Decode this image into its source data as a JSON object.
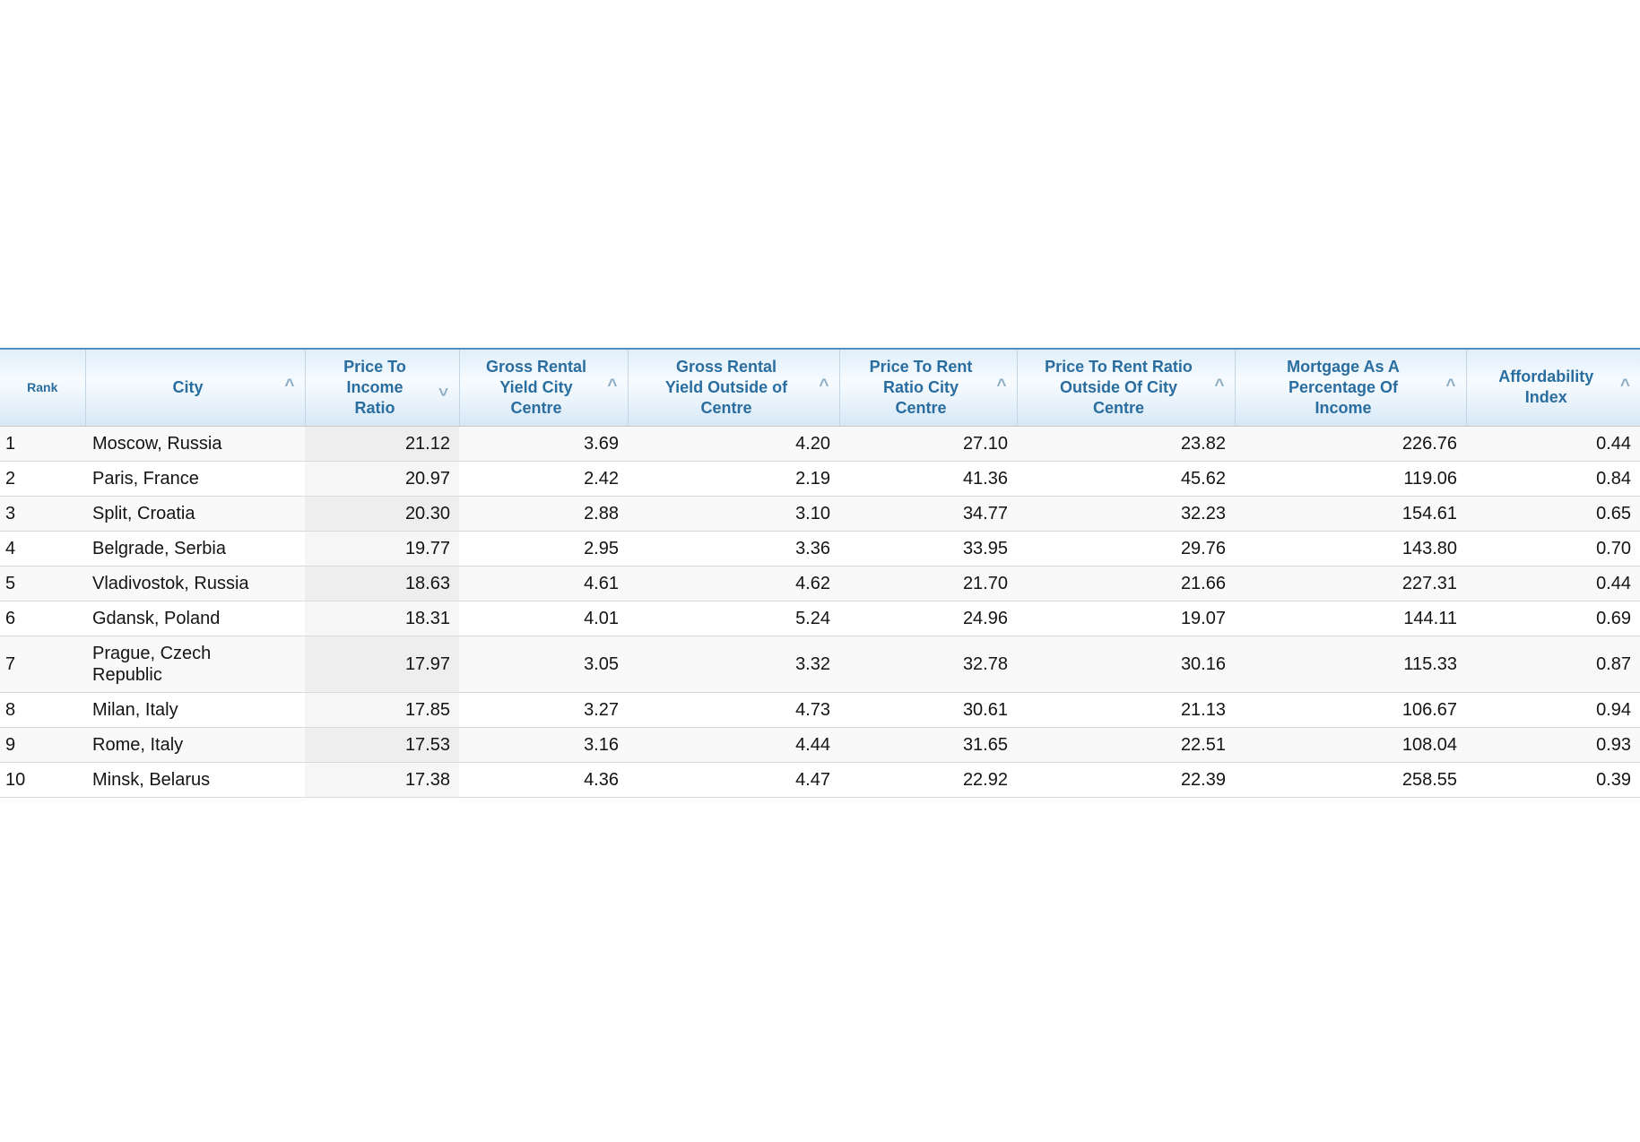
{
  "table": {
    "columns": [
      {
        "id": "rank",
        "name": "rank",
        "label": "Rank",
        "sort": null,
        "sorted": false,
        "align": "left"
      },
      {
        "id": "city",
        "name": "city",
        "label": "City",
        "sort": "asc",
        "sorted": false,
        "align": "left"
      },
      {
        "id": "pti",
        "name": "price-to-income-ratio",
        "label": "Price To\nIncome\nRatio",
        "sort": "desc",
        "sorted": true,
        "align": "right"
      },
      {
        "id": "grycc",
        "name": "gross-rental-yield-city-centre",
        "label": "Gross Rental\nYield City\nCentre",
        "sort": "asc",
        "sorted": false,
        "align": "right"
      },
      {
        "id": "gryoc",
        "name": "gross-rental-yield-outside-of-centre",
        "label": "Gross Rental\nYield Outside of\nCentre",
        "sort": "asc",
        "sorted": false,
        "align": "right"
      },
      {
        "id": "ptrcc",
        "name": "price-to-rent-ratio-city-centre",
        "label": "Price To Rent\nRatio City\nCentre",
        "sort": "asc",
        "sorted": false,
        "align": "right"
      },
      {
        "id": "ptroc",
        "name": "price-to-rent-ratio-outside-of-city-centre",
        "label": "Price To Rent Ratio\nOutside Of City\nCentre",
        "sort": "asc",
        "sorted": false,
        "align": "right"
      },
      {
        "id": "mortgage",
        "name": "mortgage-as-a-percentage-of-income",
        "label": "Mortgage As A\nPercentage Of\nIncome",
        "sort": "asc",
        "sorted": false,
        "align": "right"
      },
      {
        "id": "afford",
        "name": "affordability-index",
        "label": "Affordability\nIndex",
        "sort": "asc",
        "sorted": false,
        "align": "right"
      }
    ],
    "rows": [
      {
        "rank": "1",
        "city": "Moscow, Russia",
        "pti": "21.12",
        "grycc": "3.69",
        "gryoc": "4.20",
        "ptrcc": "27.10",
        "ptroc": "23.82",
        "mortgage": "226.76",
        "afford": "0.44"
      },
      {
        "rank": "2",
        "city": "Paris, France",
        "pti": "20.97",
        "grycc": "2.42",
        "gryoc": "2.19",
        "ptrcc": "41.36",
        "ptroc": "45.62",
        "mortgage": "119.06",
        "afford": "0.84"
      },
      {
        "rank": "3",
        "city": "Split, Croatia",
        "pti": "20.30",
        "grycc": "2.88",
        "gryoc": "3.10",
        "ptrcc": "34.77",
        "ptroc": "32.23",
        "mortgage": "154.61",
        "afford": "0.65"
      },
      {
        "rank": "4",
        "city": "Belgrade, Serbia",
        "pti": "19.77",
        "grycc": "2.95",
        "gryoc": "3.36",
        "ptrcc": "33.95",
        "ptroc": "29.76",
        "mortgage": "143.80",
        "afford": "0.70"
      },
      {
        "rank": "5",
        "city": "Vladivostok, Russia",
        "pti": "18.63",
        "grycc": "4.61",
        "gryoc": "4.62",
        "ptrcc": "21.70",
        "ptroc": "21.66",
        "mortgage": "227.31",
        "afford": "0.44"
      },
      {
        "rank": "6",
        "city": "Gdansk, Poland",
        "pti": "18.31",
        "grycc": "4.01",
        "gryoc": "5.24",
        "ptrcc": "24.96",
        "ptroc": "19.07",
        "mortgage": "144.11",
        "afford": "0.69"
      },
      {
        "rank": "7",
        "city": "Prague, Czech Republic",
        "pti": "17.97",
        "grycc": "3.05",
        "gryoc": "3.32",
        "ptrcc": "32.78",
        "ptroc": "30.16",
        "mortgage": "115.33",
        "afford": "0.87"
      },
      {
        "rank": "8",
        "city": "Milan, Italy",
        "pti": "17.85",
        "grycc": "3.27",
        "gryoc": "4.73",
        "ptrcc": "30.61",
        "ptroc": "21.13",
        "mortgage": "106.67",
        "afford": "0.94"
      },
      {
        "rank": "9",
        "city": "Rome, Italy",
        "pti": "17.53",
        "grycc": "3.16",
        "gryoc": "4.44",
        "ptrcc": "31.65",
        "ptroc": "22.51",
        "mortgage": "108.04",
        "afford": "0.93"
      },
      {
        "rank": "10",
        "city": "Minsk, Belarus",
        "pti": "17.38",
        "grycc": "4.36",
        "gryoc": "4.47",
        "ptrcc": "22.92",
        "ptroc": "22.39",
        "mortgage": "258.55",
        "afford": "0.39"
      }
    ]
  },
  "icons": {
    "sort_ascending": "chevron-up",
    "sort_descending": "chevron-down"
  },
  "colors": {
    "header_text": "#2a6d9f",
    "header_top_border": "#4e90c2",
    "header_bg_top": "#e0eefa",
    "header_bg_bottom": "#d5e8f6",
    "header_cell_border": "#c3d5e3",
    "sort_caret": "#8dadc4",
    "row_border": "#d9d9d9",
    "row_stripe": "#f9f9f9",
    "sorted_column_stripe": "#eeeeee",
    "sorted_column_plain": "#f6f6f6",
    "body_text": "#141414"
  }
}
